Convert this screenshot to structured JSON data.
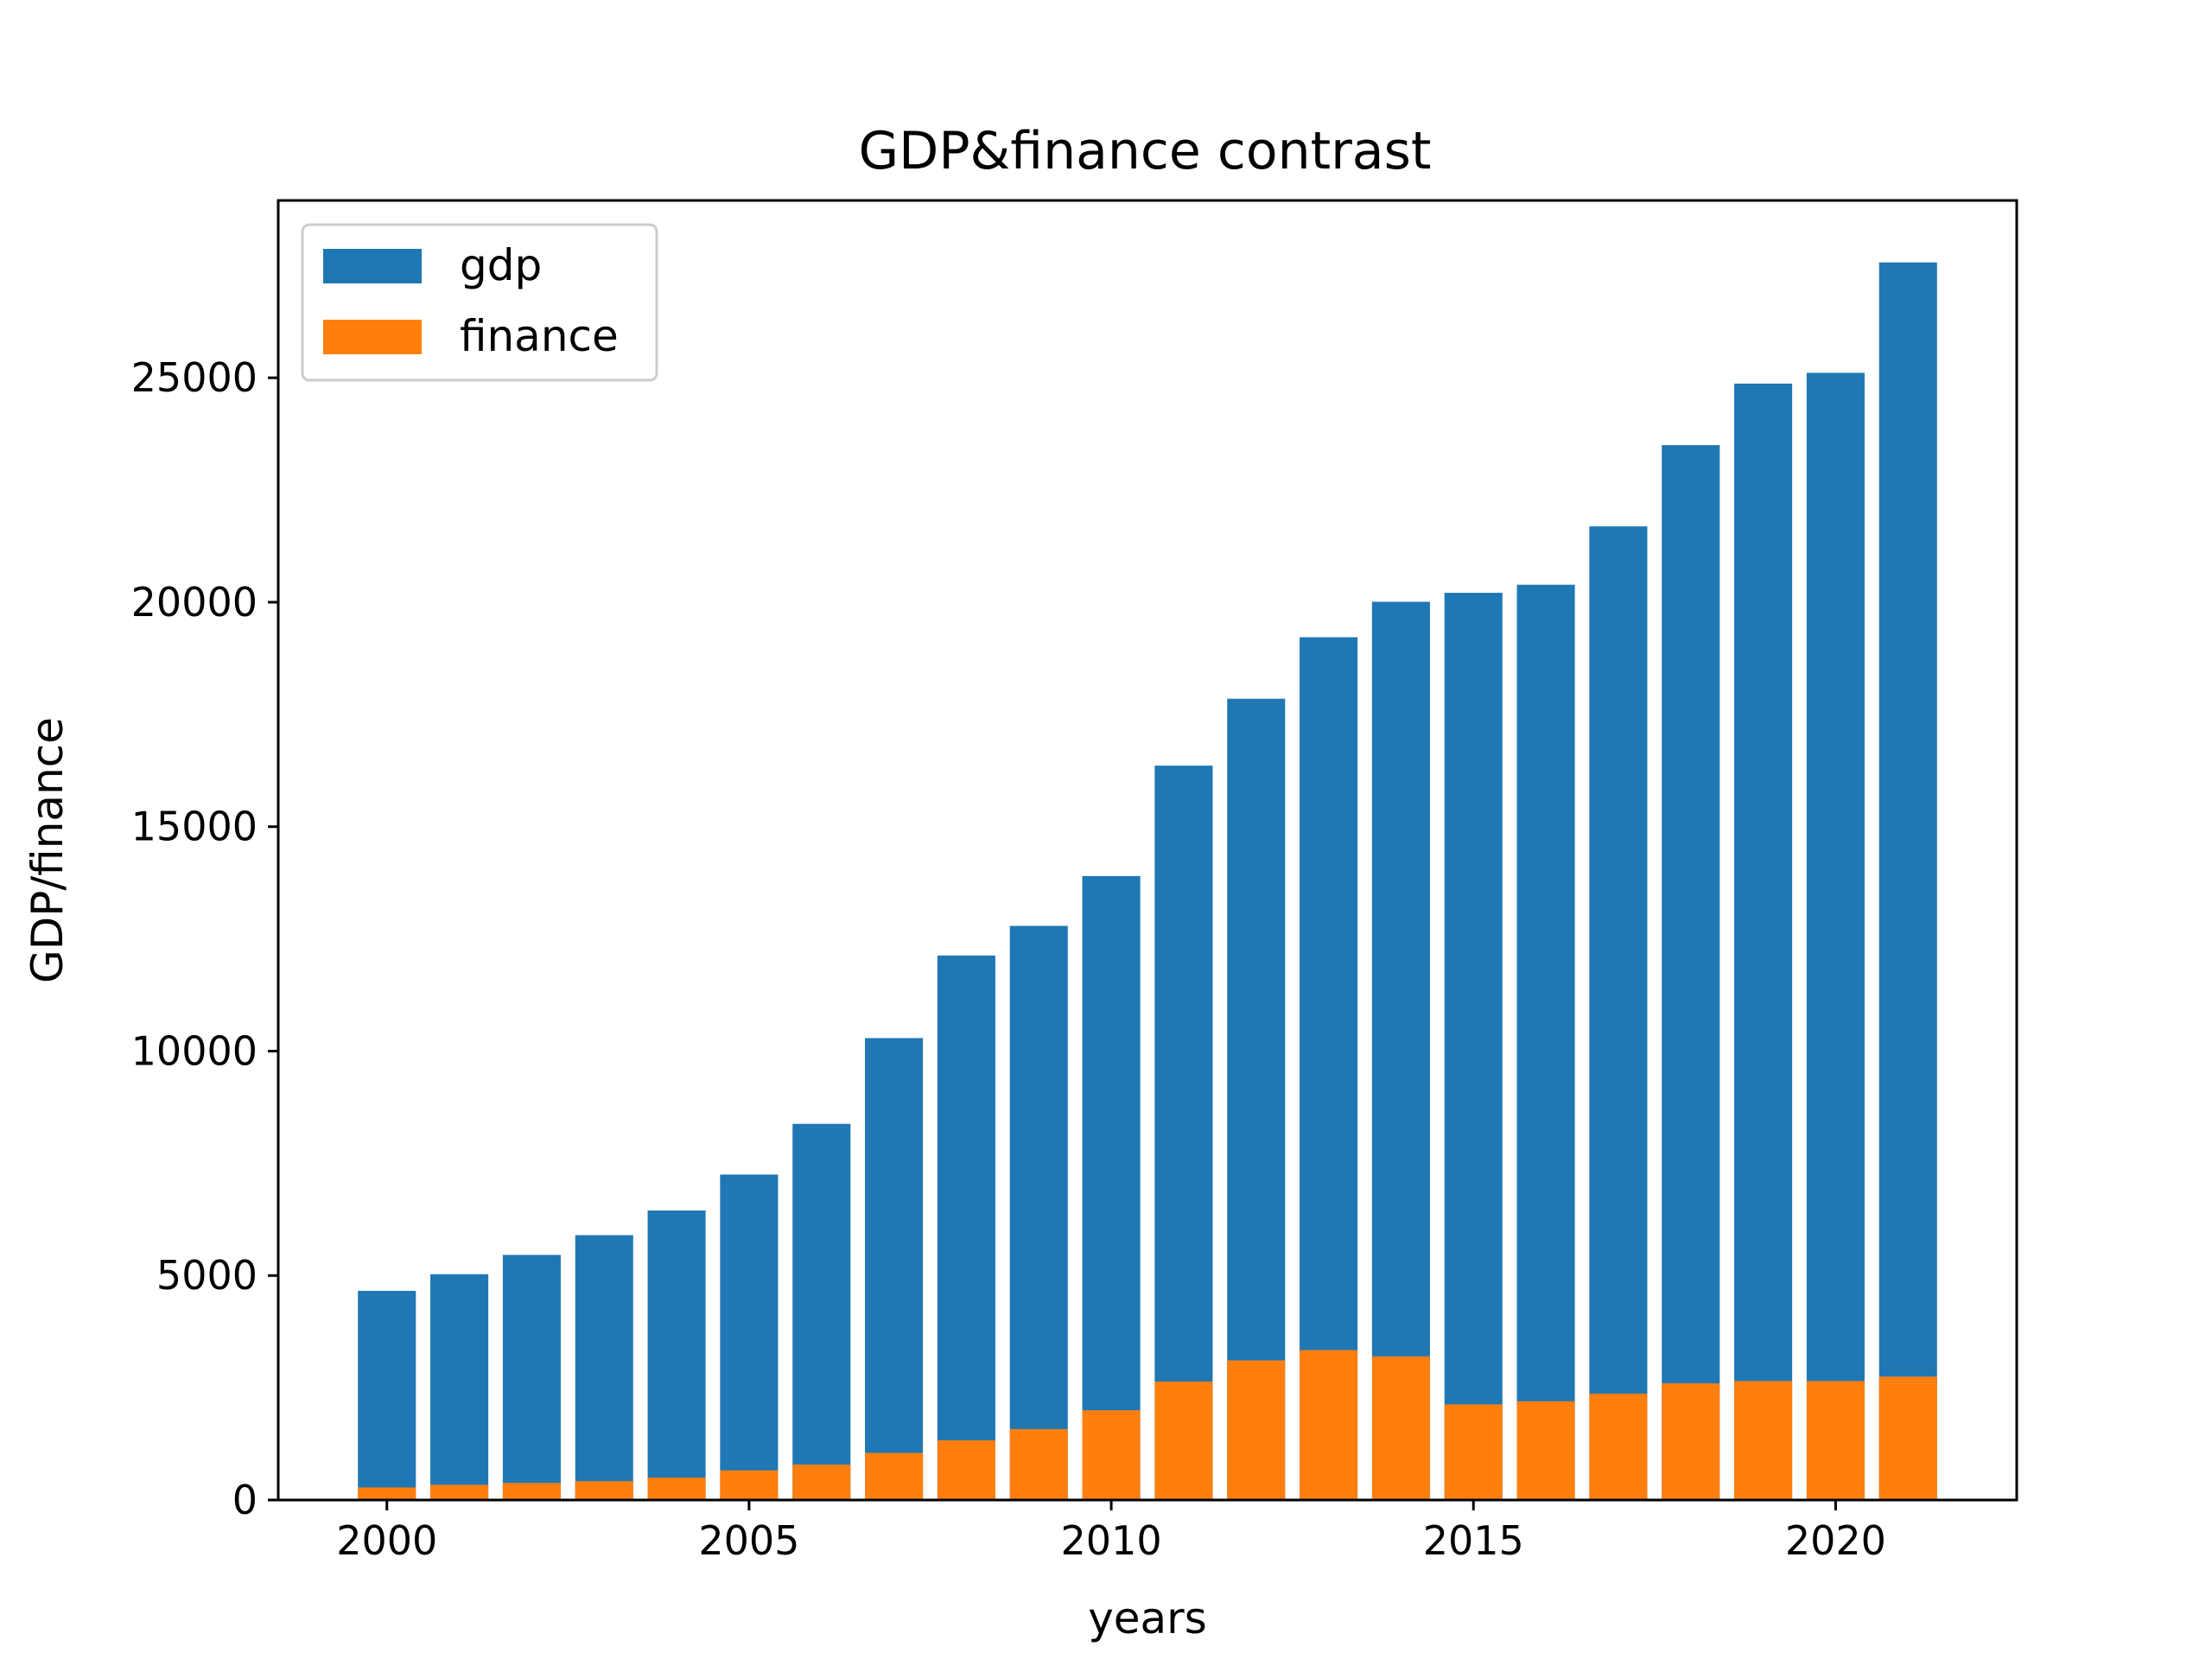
{
  "chart_data": {
    "type": "bar",
    "title": "GDP&finance contrast",
    "xlabel": "years",
    "ylabel": "GDP/finance",
    "x": [
      2000,
      2001,
      2002,
      2003,
      2004,
      2005,
      2006,
      2007,
      2008,
      2009,
      2010,
      2011,
      2012,
      2013,
      2014,
      2015,
      2016,
      2017,
      2018,
      2019,
      2020,
      2021
    ],
    "series": [
      {
        "name": "gdp",
        "color": "#1f77b4",
        "values": [
          4660,
          5030,
          5460,
          5900,
          6450,
          7250,
          8380,
          10290,
          12130,
          12790,
          13900,
          16360,
          17850,
          19220,
          20010,
          20210,
          20390,
          21690,
          23500,
          24870,
          25110,
          27570
        ]
      },
      {
        "name": "finance",
        "color": "#ff7f0e",
        "values": [
          280,
          340,
          380,
          420,
          500,
          660,
          790,
          1050,
          1330,
          1580,
          2000,
          2640,
          3110,
          3340,
          3200,
          2130,
          2200,
          2370,
          2600,
          2650,
          2650,
          2750
        ]
      }
    ],
    "xlim": [
      1998.5,
      2022.5
    ],
    "ylim": [
      0,
      28950
    ],
    "xticks": [
      2000,
      2005,
      2010,
      2015,
      2020
    ],
    "yticks": [
      0,
      5000,
      10000,
      15000,
      20000,
      25000
    ],
    "grid": false,
    "legend_position": "top-left"
  }
}
